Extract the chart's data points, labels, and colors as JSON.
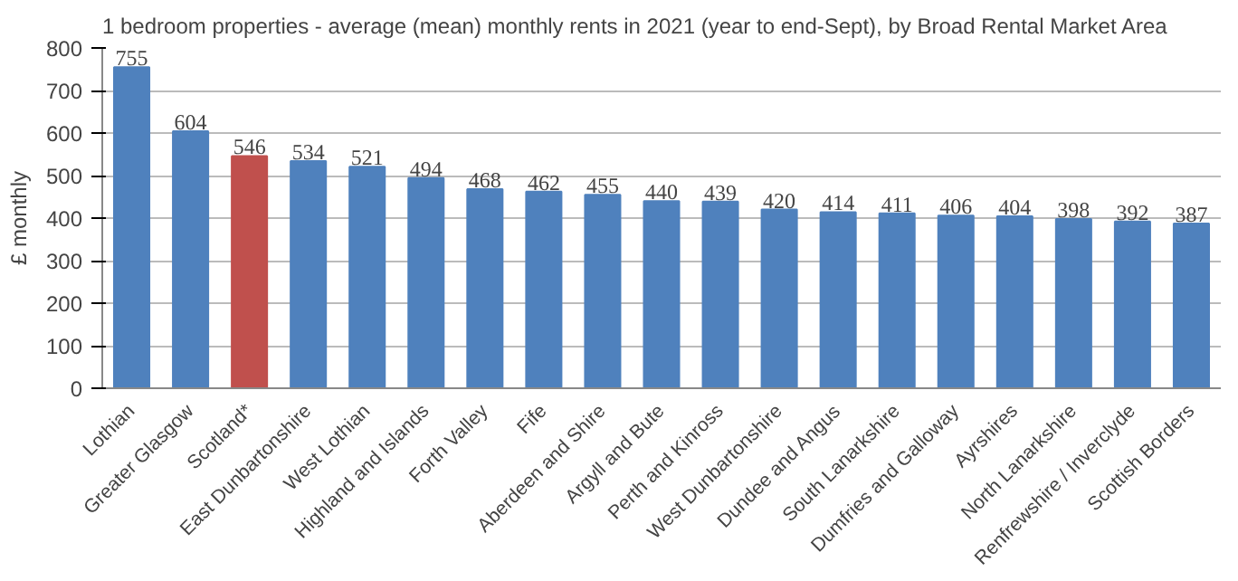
{
  "chart_data": {
    "type": "bar",
    "title": "1 bedroom properties - average (mean) monthly rents in 2021 (year to end-Sept), by Broad Rental Market Area",
    "ylabel": "£ monthly",
    "categories": [
      "Lothian",
      "Greater Glasgow",
      "Scotland*",
      "East Dunbartonshire",
      "West Lothian",
      "Highland and Islands",
      "Forth Valley",
      "Fife",
      "Aberdeen and Shire",
      "Argyll and Bute",
      "Perth and Kinross",
      "West Dunbartonshire",
      "Dundee and Angus",
      "South Lanarkshire",
      "Dumfries and Galloway",
      "Ayrshires",
      "North Lanarkshire",
      "Renfrewshire / Inverclyde",
      "Scottish Borders"
    ],
    "values": [
      755,
      604,
      546,
      534,
      521,
      494,
      468,
      462,
      455,
      440,
      439,
      420,
      414,
      411,
      406,
      404,
      398,
      392,
      387
    ],
    "colors": [
      "#4f81bd",
      "#4f81bd",
      "#c0504d",
      "#4f81bd",
      "#4f81bd",
      "#4f81bd",
      "#4f81bd",
      "#4f81bd",
      "#4f81bd",
      "#4f81bd",
      "#4f81bd",
      "#4f81bd",
      "#4f81bd",
      "#4f81bd",
      "#4f81bd",
      "#4f81bd",
      "#4f81bd",
      "#4f81bd",
      "#4f81bd"
    ],
    "ylim": [
      0,
      800
    ],
    "yticks": [
      0,
      100,
      200,
      300,
      400,
      500,
      600,
      700,
      800
    ],
    "grid": "y",
    "data_labels": true
  }
}
